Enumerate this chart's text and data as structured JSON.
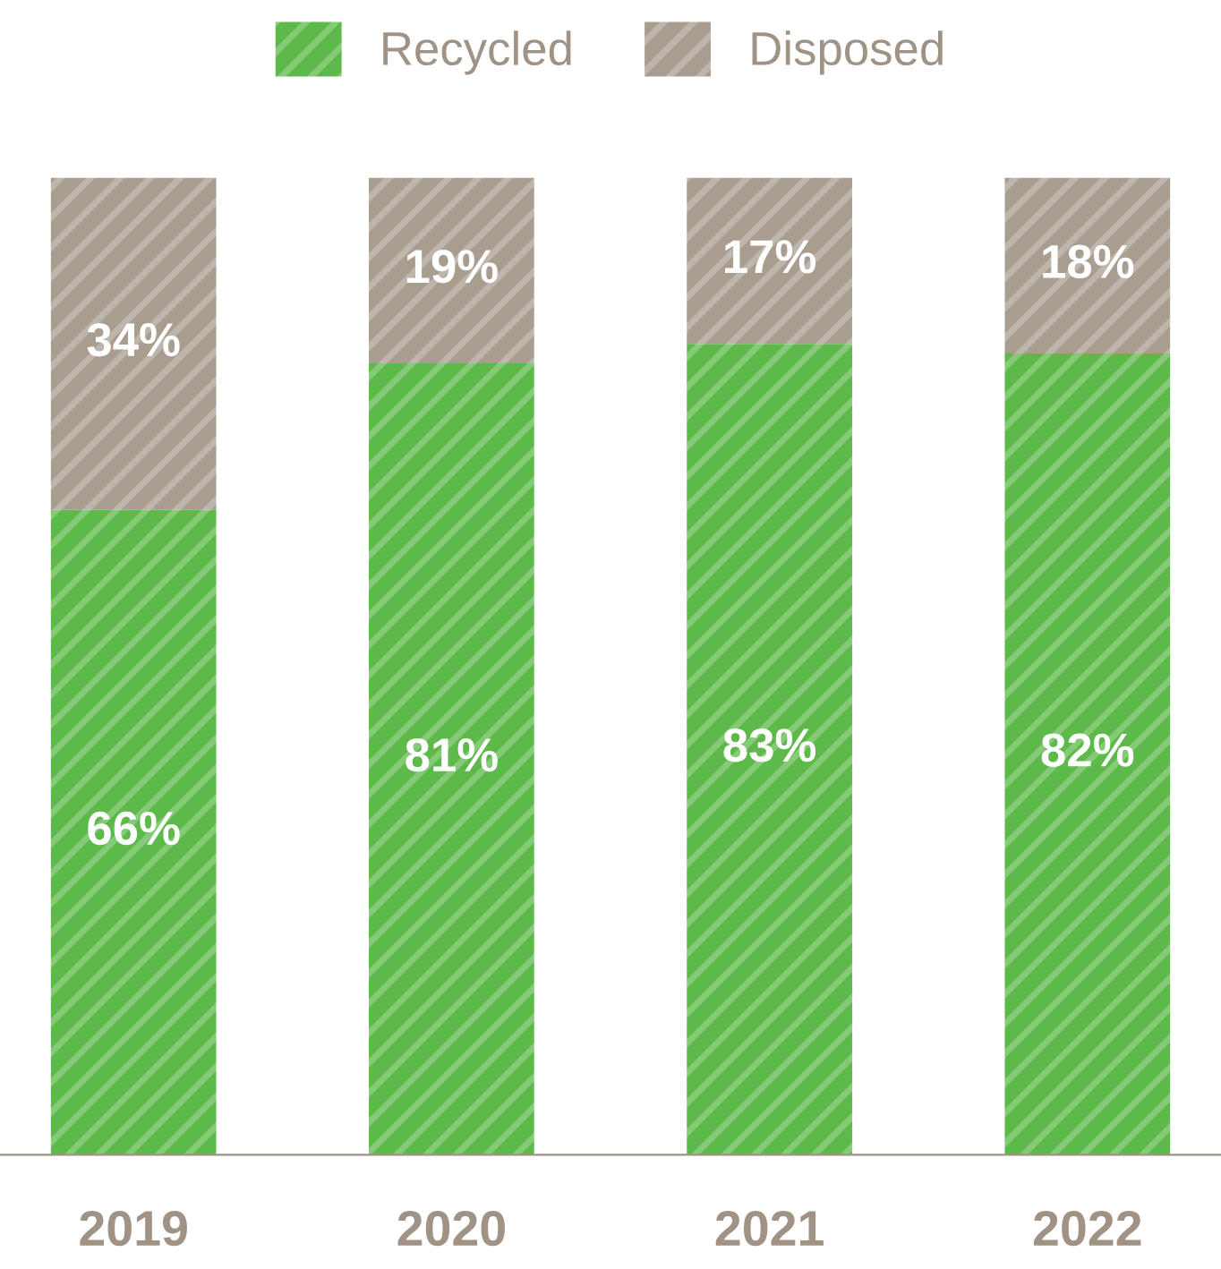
{
  "chart_data": {
    "type": "bar",
    "stacked": true,
    "categories": [
      "2019",
      "2020",
      "2021",
      "2022"
    ],
    "series": [
      {
        "name": "Recycled",
        "color": "#5cb94a",
        "values": [
          66,
          81,
          83,
          82
        ],
        "value_labels": [
          "66%",
          "81%",
          "83%",
          "82%"
        ]
      },
      {
        "name": "Disposed",
        "color": "#a99d90",
        "values": [
          34,
          19,
          17,
          18
        ],
        "value_labels": [
          "34%",
          "19%",
          "17%",
          "18%"
        ]
      }
    ],
    "legend": "top",
    "grid": false
  }
}
